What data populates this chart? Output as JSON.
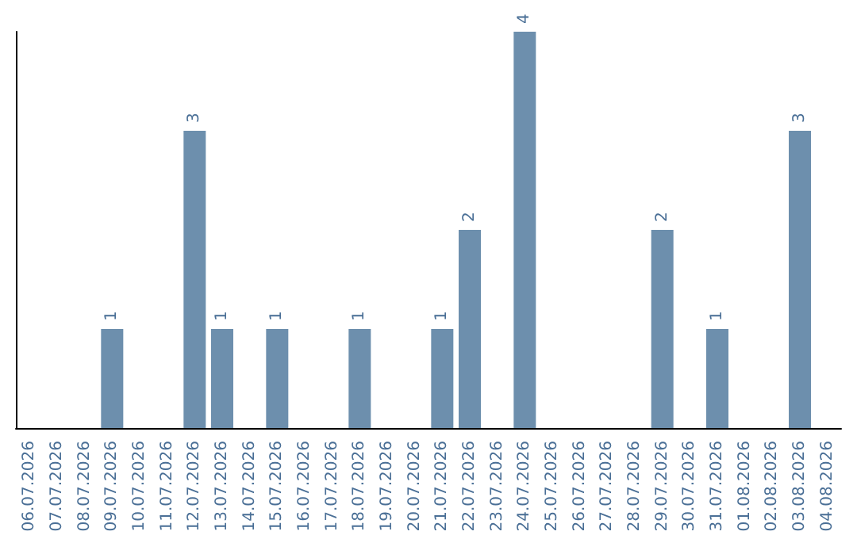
{
  "chart_data": {
    "type": "bar",
    "categories": [
      "06.07.2026",
      "07.07.2026",
      "08.07.2026",
      "09.07.2026",
      "10.07.2026",
      "11.07.2026",
      "12.07.2026",
      "13.07.2026",
      "14.07.2026",
      "15.07.2026",
      "16.07.2026",
      "17.07.2026",
      "18.07.2026",
      "19.07.2026",
      "20.07.2026",
      "21.07.2026",
      "22.07.2026",
      "23.07.2026",
      "24.07.2026",
      "25.07.2026",
      "26.07.2026",
      "27.07.2026",
      "28.07.2026",
      "29.07.2026",
      "30.07.2026",
      "31.07.2026",
      "01.08.2026",
      "02.08.2026",
      "03.08.2026",
      "04.08.2026"
    ],
    "values": [
      0,
      0,
      0,
      1,
      0,
      0,
      3,
      1,
      0,
      1,
      0,
      0,
      1,
      0,
      0,
      1,
      2,
      0,
      4,
      0,
      0,
      0,
      0,
      2,
      0,
      1,
      0,
      0,
      3,
      0
    ],
    "value_labels": [
      null,
      null,
      null,
      "1",
      null,
      null,
      "3",
      "1",
      null,
      "1",
      null,
      null,
      "1",
      null,
      null,
      "1",
      "2",
      null,
      "4",
      null,
      null,
      null,
      null,
      "2",
      null,
      "1",
      null,
      null,
      "3",
      null
    ],
    "color": "#6d8fad",
    "tick_labels": "x"
  }
}
